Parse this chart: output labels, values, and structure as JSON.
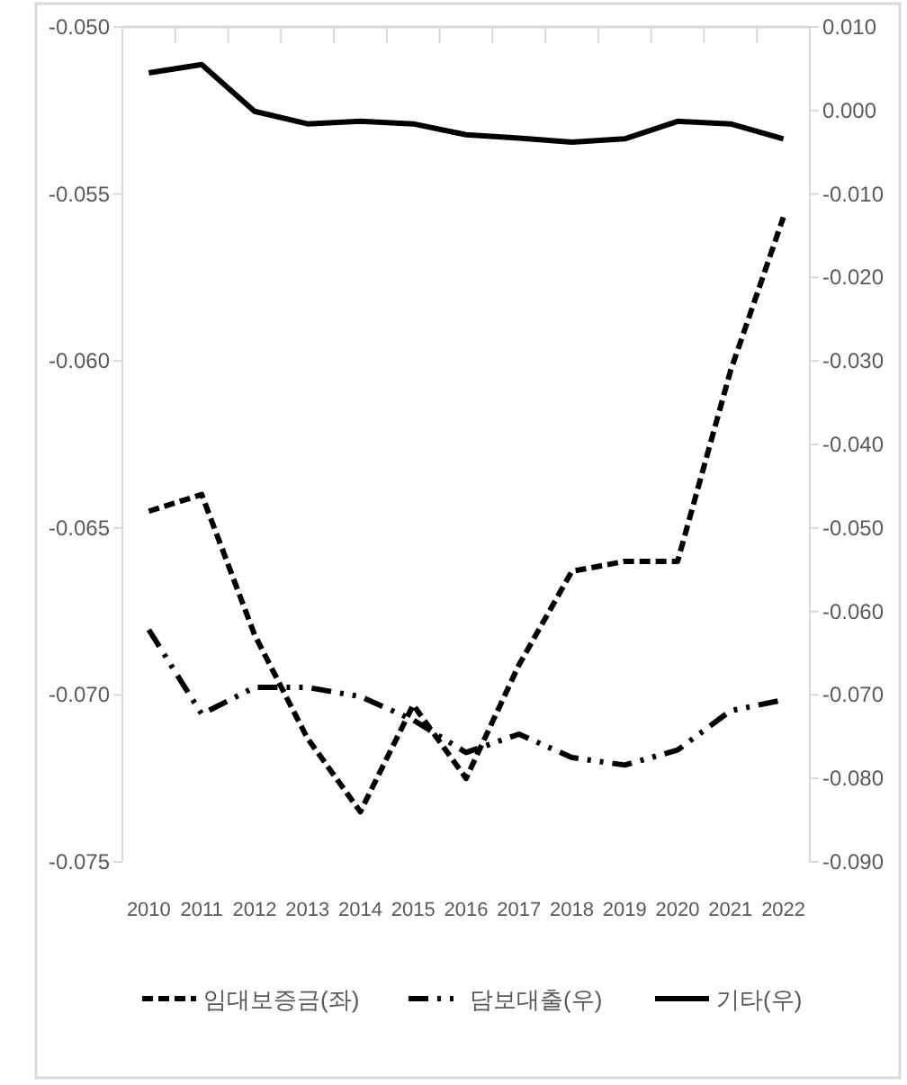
{
  "chart_data": {
    "type": "line",
    "categories": [
      "2010",
      "2011",
      "2012",
      "2013",
      "2014",
      "2015",
      "2016",
      "2017",
      "2018",
      "2019",
      "2020",
      "2021",
      "2022"
    ],
    "series": [
      {
        "name": "임대보증금(좌)",
        "color": "#000000",
        "line_style": "dashed",
        "values": [
          -0.0645,
          -0.064,
          -0.0682,
          -0.0713,
          -0.0735,
          -0.0703,
          -0.0725,
          -0.0691,
          -0.0663,
          -0.066,
          -0.066,
          -0.0603,
          -0.0557
        ]
      },
      {
        "name": "담보대출(우)",
        "color": "#000000",
        "line_style": "dashdotdot",
        "axis": "y2",
        "values": [
          -0.0622,
          -0.0723,
          -0.0691,
          -0.0691,
          -0.0702,
          -0.073,
          -0.0769,
          -0.0747,
          -0.0775,
          -0.0784,
          -0.0766,
          -0.0719,
          -0.0706
        ]
      },
      {
        "name": "기타(우)",
        "color": "#000000",
        "line_style": "solid",
        "axis": "y2",
        "values": [
          0.0045,
          0.0055,
          -0.0001,
          -0.0016,
          -0.0013,
          -0.0016,
          -0.0029,
          -0.0033,
          -0.0038,
          -0.0034,
          -0.0013,
          -0.0016,
          -0.0034
        ]
      }
    ],
    "ylim": [
      -0.075,
      -0.05
    ],
    "yticks": [
      {
        "value": -0.075,
        "label": "-0.075"
      },
      {
        "value": -0.07,
        "label": "-0.070"
      },
      {
        "value": -0.065,
        "label": "-0.065"
      },
      {
        "value": -0.06,
        "label": "-0.060"
      },
      {
        "value": -0.055,
        "label": "-0.055"
      },
      {
        "value": -0.05,
        "label": "-0.050"
      }
    ],
    "y2lim": [
      -0.09,
      0.01
    ],
    "y2ticks": [
      {
        "value": -0.09,
        "label": "-0.090"
      },
      {
        "value": -0.08,
        "label": "-0.080"
      },
      {
        "value": -0.07,
        "label": "-0.070"
      },
      {
        "value": -0.06,
        "label": "-0.060"
      },
      {
        "value": -0.05,
        "label": "-0.050"
      },
      {
        "value": -0.04,
        "label": "-0.040"
      },
      {
        "value": -0.03,
        "label": "-0.030"
      },
      {
        "value": -0.02,
        "label": "-0.020"
      },
      {
        "value": -0.01,
        "label": "-0.010"
      },
      {
        "value": 0,
        "label": "0.000"
      },
      {
        "value": 0.01,
        "label": "0.010"
      }
    ],
    "legend": "bottom"
  }
}
